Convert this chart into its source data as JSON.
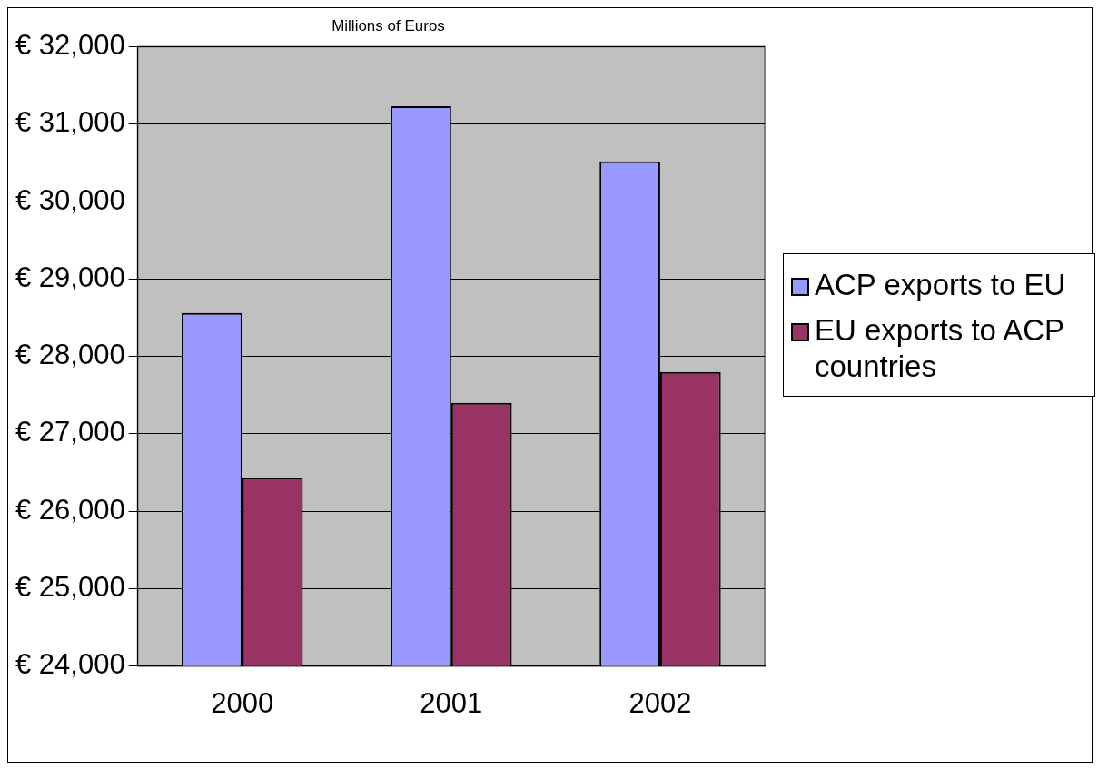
{
  "chart_data": {
    "type": "bar",
    "title": "Millions of Euros",
    "categories": [
      "2000",
      "2001",
      "2002"
    ],
    "series": [
      {
        "name": "ACP exports to EU",
        "color": "#9999ff",
        "values": [
          28560,
          31230,
          30520
        ]
      },
      {
        "name": "EU exports to ACP countries",
        "color": "#993366",
        "values": [
          26435,
          27400,
          27800
        ]
      }
    ],
    "ylim": [
      24000,
      32000
    ],
    "yticks": [
      {
        "value": 24000,
        "label": "€ 24,000"
      },
      {
        "value": 25000,
        "label": "€ 25,000"
      },
      {
        "value": 26000,
        "label": "€ 26,000"
      },
      {
        "value": 27000,
        "label": "€ 27,000"
      },
      {
        "value": 28000,
        "label": "€ 28,000"
      },
      {
        "value": 29000,
        "label": "€ 29,000"
      },
      {
        "value": 30000,
        "label": "€ 30,000"
      },
      {
        "value": 31000,
        "label": "€ 31,000"
      },
      {
        "value": 32000,
        "label": "€ 32,000"
      }
    ],
    "grid": "y",
    "legend": "right"
  }
}
